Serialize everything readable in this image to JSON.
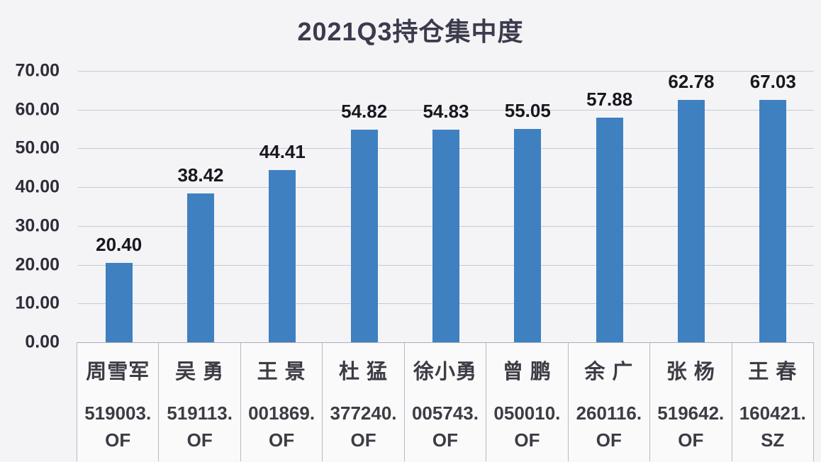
{
  "page": {
    "background": "#f4f4f6"
  },
  "chart_data": {
    "type": "bar",
    "title": "2021Q3持仓集中度",
    "categories": [
      "周雪军",
      "吴 勇",
      "王 景",
      "杜 猛",
      "徐小勇",
      "曾 鹏",
      "余 广",
      "张 杨",
      "王 春"
    ],
    "codes": [
      "519003.OF",
      "519113.OF",
      "001869.OF",
      "377240.OF",
      "005743.OF",
      "050010.OF",
      "260116.OF",
      "519642.OF",
      "160421.SZ"
    ],
    "values": [
      20.4,
      38.42,
      44.41,
      54.82,
      54.83,
      55.05,
      57.88,
      62.78,
      67.03
    ],
    "value_labels": [
      "20.40",
      "38.42",
      "44.41",
      "54.82",
      "54.83",
      "55.05",
      "57.88",
      "62.78",
      "67.03"
    ],
    "xlabel": "",
    "ylabel": "",
    "ylim": [
      0,
      70
    ],
    "ytick_step": 10,
    "ytick_labels": [
      "0.00",
      "10.00",
      "20.00",
      "30.00",
      "40.00",
      "50.00",
      "60.00",
      "70.00"
    ],
    "grid": true,
    "legend": false,
    "data_labels": true,
    "colors": {
      "bar": "#3f80c1",
      "gridline": "#c7cbd3",
      "axis_line": "#aab0ba",
      "title_text": "#3b3b4d",
      "value_label_text": "#17171f",
      "tick_label_text": "#2e2e3a",
      "category_text": "#3c3c44",
      "table_border": "#b5bac4",
      "background": "#f4f4f6"
    }
  }
}
